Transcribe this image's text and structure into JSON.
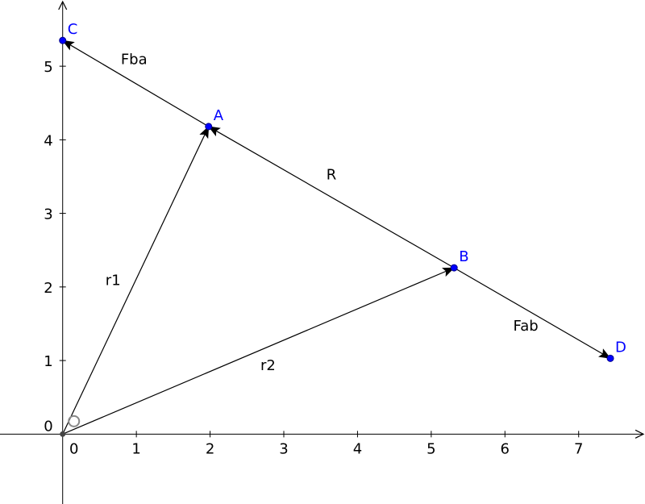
{
  "colors": {
    "axis": "#000000",
    "vector": "#000000",
    "point": "#0000ff",
    "point_label": "#0000ff",
    "origin_point": "#444444"
  },
  "axes": {
    "x_range": [
      -0.85,
      7.9
    ],
    "y_range": [
      -0.95,
      5.9
    ],
    "x_ticks": [
      {
        "value": 1,
        "label": "1"
      },
      {
        "value": 2,
        "label": "2"
      },
      {
        "value": 3,
        "label": "3"
      },
      {
        "value": 4,
        "label": "4"
      },
      {
        "value": 5,
        "label": "5"
      },
      {
        "value": 6,
        "label": "6"
      },
      {
        "value": 7,
        "label": "7"
      }
    ],
    "y_ticks": [
      {
        "value": 1,
        "label": "1"
      },
      {
        "value": 2,
        "label": "2"
      },
      {
        "value": 3,
        "label": "3"
      },
      {
        "value": 4,
        "label": "4"
      },
      {
        "value": 5,
        "label": "5"
      }
    ],
    "x_origin_label": "0",
    "y_origin_label": "0"
  },
  "points": [
    {
      "id": "origin",
      "label": "O",
      "x": 0,
      "y": 0,
      "labeled": false,
      "style": "origin"
    },
    {
      "id": "A",
      "label": "A",
      "x": 1.98,
      "y": 4.18,
      "labeled": true
    },
    {
      "id": "B",
      "label": "B",
      "x": 5.31,
      "y": 2.26,
      "labeled": true
    },
    {
      "id": "C",
      "label": "C",
      "x": 0.0,
      "y": 5.35,
      "labeled": true
    },
    {
      "id": "D",
      "label": "D",
      "x": 7.43,
      "y": 1.03,
      "labeled": true
    }
  ],
  "vectors": [
    {
      "id": "r1",
      "label": "r1",
      "from": "origin",
      "to": "A"
    },
    {
      "id": "r2",
      "label": "r2",
      "from": "origin",
      "to": "B"
    },
    {
      "id": "R",
      "label": "R",
      "from": "B",
      "to": "A"
    },
    {
      "id": "Fba",
      "label": "Fba",
      "from": "A",
      "to": "C"
    },
    {
      "id": "Fab",
      "label": "Fab",
      "from": "B",
      "to": "D"
    }
  ]
}
